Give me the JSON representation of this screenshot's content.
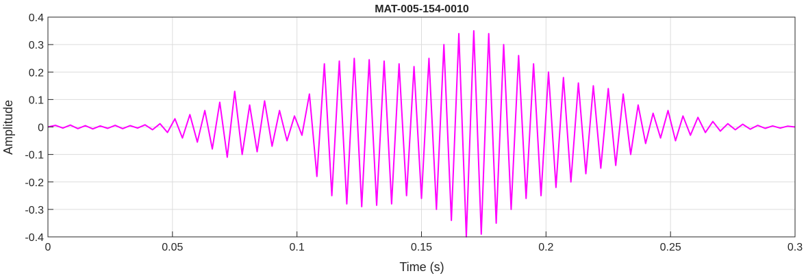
{
  "chart_data": {
    "type": "line",
    "title": "MAT-005-154-0010",
    "xlabel": "Time (s)",
    "ylabel": "Amplitude",
    "xlim": [
      0,
      0.3
    ],
    "ylim": [
      -0.4,
      0.4
    ],
    "xticks": [
      0,
      0.05,
      0.1,
      0.15,
      0.2,
      0.25,
      0.3
    ],
    "xtick_labels": [
      "0",
      "0.05",
      "0.1",
      "0.15",
      "0.2",
      "0.25",
      "0.3"
    ],
    "yticks": [
      0.4,
      0.3,
      0.2,
      0.1,
      0,
      -0.1,
      -0.2,
      -0.3,
      -0.4
    ],
    "ytick_labels": [
      "0.4",
      "0.3",
      "0.2",
      "0.1",
      "0",
      "-0.1",
      "-0.2",
      "-0.3",
      "-0.4"
    ],
    "grid": true,
    "series": [
      {
        "color": "#ff00ff",
        "x": [
          0.0,
          0.003,
          0.006,
          0.009,
          0.012,
          0.015,
          0.018,
          0.021,
          0.024,
          0.027,
          0.03,
          0.033,
          0.036,
          0.039,
          0.042,
          0.045,
          0.048,
          0.051,
          0.054,
          0.057,
          0.06,
          0.063,
          0.066,
          0.069,
          0.072,
          0.075,
          0.078,
          0.081,
          0.084,
          0.087,
          0.09,
          0.093,
          0.096,
          0.099,
          0.102,
          0.105,
          0.108,
          0.111,
          0.114,
          0.117,
          0.12,
          0.123,
          0.126,
          0.129,
          0.132,
          0.135,
          0.138,
          0.141,
          0.144,
          0.147,
          0.15,
          0.153,
          0.156,
          0.159,
          0.162,
          0.165,
          0.168,
          0.171,
          0.174,
          0.177,
          0.18,
          0.183,
          0.186,
          0.189,
          0.192,
          0.195,
          0.198,
          0.201,
          0.204,
          0.207,
          0.21,
          0.213,
          0.216,
          0.219,
          0.222,
          0.225,
          0.228,
          0.231,
          0.234,
          0.237,
          0.24,
          0.243,
          0.246,
          0.249,
          0.252,
          0.255,
          0.258,
          0.261,
          0.264,
          0.267,
          0.27,
          0.273,
          0.276,
          0.279,
          0.282,
          0.285,
          0.288,
          0.291,
          0.294,
          0.297,
          0.3
        ],
        "y": [
          0.0,
          0.006,
          -0.004,
          0.007,
          -0.006,
          0.005,
          -0.007,
          0.004,
          -0.005,
          0.006,
          -0.006,
          0.005,
          -0.004,
          0.008,
          -0.01,
          0.012,
          -0.02,
          0.03,
          -0.04,
          0.045,
          -0.055,
          0.06,
          -0.08,
          0.09,
          -0.11,
          0.13,
          -0.1,
          0.08,
          -0.09,
          0.095,
          -0.07,
          0.06,
          -0.05,
          0.04,
          -0.03,
          0.12,
          -0.18,
          0.23,
          -0.25,
          0.24,
          -0.28,
          0.25,
          -0.29,
          0.245,
          -0.285,
          0.24,
          -0.28,
          0.23,
          -0.25,
          0.22,
          -0.26,
          0.25,
          -0.3,
          0.3,
          -0.34,
          0.34,
          -0.4,
          0.35,
          -0.39,
          0.34,
          -0.35,
          0.3,
          -0.3,
          0.26,
          -0.26,
          0.23,
          -0.25,
          0.2,
          -0.22,
          0.18,
          -0.2,
          0.16,
          -0.17,
          0.15,
          -0.15,
          0.14,
          -0.14,
          0.12,
          -0.1,
          0.08,
          -0.06,
          0.05,
          -0.04,
          0.06,
          -0.05,
          0.04,
          -0.03,
          0.035,
          -0.02,
          0.02,
          -0.015,
          0.012,
          -0.01,
          0.01,
          -0.008,
          0.006,
          -0.005,
          0.004,
          -0.004,
          0.003,
          0.0
        ]
      }
    ]
  }
}
